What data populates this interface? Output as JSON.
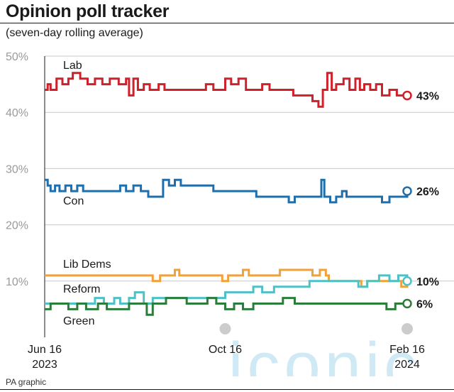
{
  "header": {
    "title": "Opinion poll tracker",
    "subtitle": "(seven-day rolling average)"
  },
  "footer": {
    "credit": "PA graphic",
    "watermark": "iconic"
  },
  "chart_data": {
    "type": "line",
    "title": "Opinion poll tracker",
    "subtitle": "(seven-day rolling average)",
    "xlabel": "",
    "ylabel": "",
    "ylim": [
      0,
      50
    ],
    "y_ticks": [
      "10%",
      "20%",
      "30%",
      "40%",
      "50%"
    ],
    "y_tick_values": [
      10,
      20,
      30,
      40,
      50
    ],
    "grid": true,
    "x_ticks": [
      {
        "label_top": "Jun 16",
        "label_bottom": "2023",
        "date": "2023-06-16"
      },
      {
        "label_top": "Oct 16",
        "label_bottom": "",
        "date": "2023-10-16"
      },
      {
        "label_top": "Feb 16",
        "label_bottom": "2024",
        "date": "2024-02-16"
      }
    ],
    "x_range": [
      "2023-06-16",
      "2024-02-16"
    ],
    "series": [
      {
        "name": "Lab",
        "color": "#d0202a",
        "end_label": "43%",
        "points": [
          [
            "2023-06-16",
            44
          ],
          [
            "2023-06-18",
            45
          ],
          [
            "2023-06-20",
            44
          ],
          [
            "2023-06-24",
            46
          ],
          [
            "2023-06-28",
            45
          ],
          [
            "2023-07-02",
            46
          ],
          [
            "2023-07-05",
            47
          ],
          [
            "2023-07-10",
            46
          ],
          [
            "2023-07-15",
            45
          ],
          [
            "2023-07-20",
            46
          ],
          [
            "2023-07-25",
            45
          ],
          [
            "2023-07-30",
            46
          ],
          [
            "2023-08-05",
            45
          ],
          [
            "2023-08-10",
            46
          ],
          [
            "2023-08-12",
            43
          ],
          [
            "2023-08-15",
            46
          ],
          [
            "2023-08-18",
            44
          ],
          [
            "2023-08-22",
            45
          ],
          [
            "2023-08-26",
            44
          ],
          [
            "2023-09-01",
            45
          ],
          [
            "2023-09-05",
            44
          ],
          [
            "2023-09-10",
            44
          ],
          [
            "2023-09-20",
            44
          ],
          [
            "2023-09-28",
            44
          ],
          [
            "2023-10-03",
            45
          ],
          [
            "2023-10-08",
            44
          ],
          [
            "2023-10-12",
            44
          ],
          [
            "2023-10-16",
            46
          ],
          [
            "2023-10-20",
            45
          ],
          [
            "2023-10-25",
            46
          ],
          [
            "2023-10-30",
            44
          ],
          [
            "2023-11-05",
            44
          ],
          [
            "2023-11-10",
            45
          ],
          [
            "2023-11-15",
            44
          ],
          [
            "2023-11-22",
            44
          ],
          [
            "2023-12-01",
            43
          ],
          [
            "2023-12-08",
            43
          ],
          [
            "2023-12-14",
            42
          ],
          [
            "2023-12-18",
            41
          ],
          [
            "2023-12-21",
            44
          ],
          [
            "2023-12-24",
            47
          ],
          [
            "2023-12-27",
            44
          ],
          [
            "2023-12-30",
            45
          ],
          [
            "2024-01-04",
            46
          ],
          [
            "2024-01-08",
            44
          ],
          [
            "2024-01-12",
            46
          ],
          [
            "2024-01-15",
            44
          ],
          [
            "2024-01-18",
            45
          ],
          [
            "2024-01-22",
            44
          ],
          [
            "2024-01-26",
            45
          ],
          [
            "2024-01-30",
            43
          ],
          [
            "2024-02-04",
            44
          ],
          [
            "2024-02-09",
            43
          ],
          [
            "2024-02-16",
            43
          ]
        ]
      },
      {
        "name": "Con",
        "color": "#1f6fad",
        "end_label": "26%",
        "points": [
          [
            "2023-06-16",
            28
          ],
          [
            "2023-06-18",
            27
          ],
          [
            "2023-06-20",
            26
          ],
          [
            "2023-06-23",
            27
          ],
          [
            "2023-06-26",
            26
          ],
          [
            "2023-06-30",
            27
          ],
          [
            "2023-07-04",
            26
          ],
          [
            "2023-07-08",
            27
          ],
          [
            "2023-07-12",
            26
          ],
          [
            "2023-07-18",
            26
          ],
          [
            "2023-07-25",
            26
          ],
          [
            "2023-08-01",
            26
          ],
          [
            "2023-08-06",
            27
          ],
          [
            "2023-08-10",
            26
          ],
          [
            "2023-08-15",
            27
          ],
          [
            "2023-08-20",
            26
          ],
          [
            "2023-08-25",
            25
          ],
          [
            "2023-09-01",
            25
          ],
          [
            "2023-09-04",
            28
          ],
          [
            "2023-09-08",
            27
          ],
          [
            "2023-09-12",
            28
          ],
          [
            "2023-09-16",
            27
          ],
          [
            "2023-09-22",
            27
          ],
          [
            "2023-09-30",
            27
          ],
          [
            "2023-10-08",
            26
          ],
          [
            "2023-10-16",
            26
          ],
          [
            "2023-10-25",
            26
          ],
          [
            "2023-11-01",
            26
          ],
          [
            "2023-11-06",
            25
          ],
          [
            "2023-11-12",
            25
          ],
          [
            "2023-11-18",
            25
          ],
          [
            "2023-11-24",
            25
          ],
          [
            "2023-11-28",
            24
          ],
          [
            "2023-12-02",
            25
          ],
          [
            "2023-12-08",
            25
          ],
          [
            "2023-12-14",
            25
          ],
          [
            "2023-12-18",
            25
          ],
          [
            "2023-12-20",
            28
          ],
          [
            "2023-12-22",
            25
          ],
          [
            "2023-12-26",
            24
          ],
          [
            "2023-12-30",
            25
          ],
          [
            "2024-01-03",
            26
          ],
          [
            "2024-01-06",
            25
          ],
          [
            "2024-01-12",
            25
          ],
          [
            "2024-01-18",
            25
          ],
          [
            "2024-01-24",
            25
          ],
          [
            "2024-01-30",
            24
          ],
          [
            "2024-02-04",
            25
          ],
          [
            "2024-02-10",
            25
          ],
          [
            "2024-02-16",
            26
          ]
        ]
      },
      {
        "name": "Lib Dems",
        "color": "#f0a13a",
        "end_label": "",
        "points": [
          [
            "2023-06-16",
            11
          ],
          [
            "2023-07-05",
            11
          ],
          [
            "2023-07-25",
            11
          ],
          [
            "2023-08-05",
            11
          ],
          [
            "2023-08-20",
            11
          ],
          [
            "2023-08-28",
            10
          ],
          [
            "2023-09-02",
            11
          ],
          [
            "2023-09-08",
            11
          ],
          [
            "2023-09-12",
            12
          ],
          [
            "2023-09-15",
            11
          ],
          [
            "2023-09-28",
            11
          ],
          [
            "2023-10-10",
            11
          ],
          [
            "2023-10-14",
            10
          ],
          [
            "2023-10-18",
            11
          ],
          [
            "2023-10-24",
            11
          ],
          [
            "2023-10-28",
            12
          ],
          [
            "2023-11-01",
            11
          ],
          [
            "2023-11-08",
            11
          ],
          [
            "2023-11-16",
            11
          ],
          [
            "2023-11-22",
            12
          ],
          [
            "2023-11-28",
            12
          ],
          [
            "2023-12-06",
            12
          ],
          [
            "2023-12-14",
            11
          ],
          [
            "2023-12-19",
            12
          ],
          [
            "2023-12-23",
            11
          ],
          [
            "2023-12-25",
            10
          ],
          [
            "2024-01-02",
            10
          ],
          [
            "2024-01-10",
            10
          ],
          [
            "2024-01-16",
            9
          ],
          [
            "2024-01-20",
            10
          ],
          [
            "2024-01-26",
            10
          ],
          [
            "2024-02-02",
            10
          ],
          [
            "2024-02-08",
            10
          ],
          [
            "2024-02-12",
            9
          ],
          [
            "2024-02-16",
            10
          ]
        ]
      },
      {
        "name": "Reform",
        "color": "#4fc1c6",
        "end_label": "10%",
        "points": [
          [
            "2023-06-16",
            6
          ],
          [
            "2023-06-24",
            6
          ],
          [
            "2023-07-04",
            6
          ],
          [
            "2023-07-12",
            6
          ],
          [
            "2023-07-20",
            7
          ],
          [
            "2023-07-26",
            6
          ],
          [
            "2023-08-02",
            7
          ],
          [
            "2023-08-06",
            6
          ],
          [
            "2023-08-12",
            7
          ],
          [
            "2023-08-16",
            8
          ],
          [
            "2023-08-22",
            6
          ],
          [
            "2023-08-28",
            7
          ],
          [
            "2023-09-05",
            7
          ],
          [
            "2023-09-14",
            7
          ],
          [
            "2023-09-22",
            7
          ],
          [
            "2023-10-02",
            7
          ],
          [
            "2023-10-12",
            7
          ],
          [
            "2023-10-16",
            8
          ],
          [
            "2023-10-24",
            8
          ],
          [
            "2023-10-30",
            8
          ],
          [
            "2023-11-04",
            9
          ],
          [
            "2023-11-10",
            8
          ],
          [
            "2023-11-18",
            9
          ],
          [
            "2023-11-26",
            9
          ],
          [
            "2023-12-04",
            9
          ],
          [
            "2023-12-12",
            10
          ],
          [
            "2023-12-20",
            10
          ],
          [
            "2024-01-01",
            10
          ],
          [
            "2024-01-08",
            10
          ],
          [
            "2024-01-14",
            9
          ],
          [
            "2024-01-20",
            10
          ],
          [
            "2024-01-28",
            11
          ],
          [
            "2024-02-04",
            10
          ],
          [
            "2024-02-10",
            11
          ],
          [
            "2024-02-16",
            10
          ]
        ]
      },
      {
        "name": "Green",
        "color": "#2d7d3a",
        "end_label": "6%",
        "points": [
          [
            "2023-06-16",
            5
          ],
          [
            "2023-06-20",
            6
          ],
          [
            "2023-06-26",
            6
          ],
          [
            "2023-07-02",
            5
          ],
          [
            "2023-07-08",
            6
          ],
          [
            "2023-07-14",
            5
          ],
          [
            "2023-07-22",
            6
          ],
          [
            "2023-07-28",
            5
          ],
          [
            "2023-08-05",
            5
          ],
          [
            "2023-08-12",
            6
          ],
          [
            "2023-08-18",
            6
          ],
          [
            "2023-08-24",
            4
          ],
          [
            "2023-08-28",
            6
          ],
          [
            "2023-09-02",
            6
          ],
          [
            "2023-09-06",
            7
          ],
          [
            "2023-09-12",
            7
          ],
          [
            "2023-09-20",
            6
          ],
          [
            "2023-09-26",
            6
          ],
          [
            "2023-10-04",
            7
          ],
          [
            "2023-10-10",
            6
          ],
          [
            "2023-10-16",
            5
          ],
          [
            "2023-10-22",
            6
          ],
          [
            "2023-10-28",
            5
          ],
          [
            "2023-11-04",
            6
          ],
          [
            "2023-11-10",
            6
          ],
          [
            "2023-11-18",
            6
          ],
          [
            "2023-11-24",
            7
          ],
          [
            "2023-12-02",
            6
          ],
          [
            "2023-12-10",
            6
          ],
          [
            "2023-12-18",
            6
          ],
          [
            "2023-12-26",
            6
          ],
          [
            "2024-01-04",
            6
          ],
          [
            "2024-01-12",
            6
          ],
          [
            "2024-01-18",
            6
          ],
          [
            "2024-01-26",
            6
          ],
          [
            "2024-02-02",
            5
          ],
          [
            "2024-02-08",
            6
          ],
          [
            "2024-02-16",
            6
          ]
        ]
      }
    ],
    "series_labels": [
      {
        "series": "Lab",
        "text": "Lab"
      },
      {
        "series": "Con",
        "text": "Con"
      },
      {
        "series": "Lib Dems",
        "text": "Lib Dems"
      },
      {
        "series": "Reform",
        "text": "Reform"
      },
      {
        "series": "Green",
        "text": "Green"
      }
    ]
  }
}
